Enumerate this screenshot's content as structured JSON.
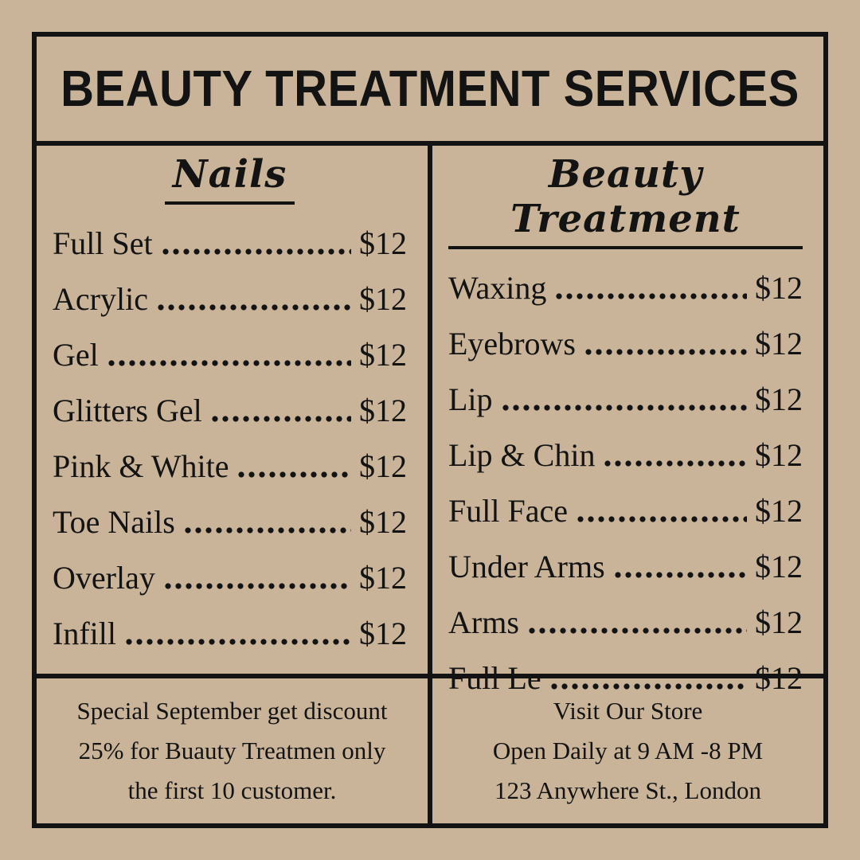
{
  "colors": {
    "background": "#cab499",
    "ink": "#131313"
  },
  "poster": {
    "title": "BEAUTY TREATMENT SERVICES",
    "columns": [
      {
        "heading": "Nails",
        "items": [
          {
            "label": "Full Set",
            "price": "$12"
          },
          {
            "label": "Acrylic",
            "price": "$12"
          },
          {
            "label": "Gel",
            "price": "$12"
          },
          {
            "label": "Glitters Gel",
            "price": "$12"
          },
          {
            "label": "Pink & White",
            "price": "$12"
          },
          {
            "label": "Toe Nails",
            "price": "$12"
          },
          {
            "label": "Overlay",
            "price": "$12"
          },
          {
            "label": "Infill",
            "price": "$12"
          }
        ]
      },
      {
        "heading": "Beauty Treatment",
        "items": [
          {
            "label": "Waxing",
            "price": "$12"
          },
          {
            "label": "Eyebrows",
            "price": "$12"
          },
          {
            "label": "Lip",
            "price": "$12"
          },
          {
            "label": "Lip & Chin",
            "price": "$12"
          },
          {
            "label": "Full Face",
            "price": "$12"
          },
          {
            "label": "Under Arms",
            "price": "$12"
          },
          {
            "label": "Arms",
            "price": "$12"
          },
          {
            "label": "Full Le",
            "price": "$12"
          }
        ]
      }
    ],
    "footers": [
      {
        "lines": [
          "Special September get discount",
          "25% for Buauty Treatmen only",
          "the first 10 customer."
        ]
      },
      {
        "lines": [
          "Visit Our Store",
          "Open Daily at 9 AM -8 PM",
          "123 Anywhere St., London"
        ]
      }
    ]
  }
}
